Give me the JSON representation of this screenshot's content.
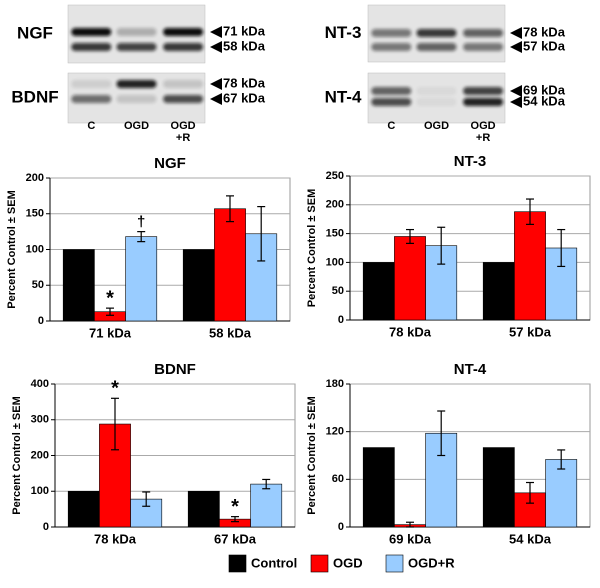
{
  "blots": {
    "lanes": [
      "C",
      "OGD",
      "OGD +R"
    ],
    "panels": [
      {
        "name": "NGF",
        "markers": [
          "71 kDa",
          "58 kDa"
        ]
      },
      {
        "name": "BDNF",
        "markers": [
          "78 kDa",
          "67 kDa"
        ]
      },
      {
        "name": "NT-3",
        "markers": [
          "78 kDa",
          "57 kDa"
        ]
      },
      {
        "name": "NT-4",
        "markers": [
          "69 kDa",
          "54 kDa"
        ]
      }
    ]
  },
  "chart_data": [
    {
      "type": "bar",
      "title": "NGF",
      "y_label": "Percent Control ± SEM",
      "categories": [
        "71 kDa",
        "58 kDa"
      ],
      "ylim": [
        0,
        200
      ],
      "yticks": [
        0,
        50,
        100,
        150,
        200
      ],
      "grid": true,
      "series": [
        {
          "name": "Control",
          "color": "#000000",
          "values": [
            100,
            100
          ]
        },
        {
          "name": "OGD",
          "color": "#ff0000",
          "values": [
            13,
            157
          ],
          "errors": [
            5,
            18
          ]
        },
        {
          "name": "OGD+R",
          "color": "#99ccff",
          "values": [
            118,
            122
          ],
          "errors": [
            7,
            38
          ]
        }
      ],
      "annotations": [
        {
          "text": "*",
          "category": 0,
          "series": 1
        },
        {
          "text": "†",
          "category": 0,
          "series": 2
        }
      ]
    },
    {
      "type": "bar",
      "title": "NT-3",
      "y_label": "Percent Control ± SEM",
      "categories": [
        "78 kDa",
        "57 kDa"
      ],
      "ylim": [
        0,
        250
      ],
      "yticks": [
        0,
        50,
        100,
        150,
        200,
        250
      ],
      "grid": true,
      "series": [
        {
          "name": "Control",
          "color": "#000000",
          "values": [
            100,
            100
          ]
        },
        {
          "name": "OGD",
          "color": "#ff0000",
          "values": [
            145,
            188
          ],
          "errors": [
            12,
            22
          ]
        },
        {
          "name": "OGD+R",
          "color": "#99ccff",
          "values": [
            129,
            125
          ],
          "errors": [
            32,
            32
          ]
        }
      ]
    },
    {
      "type": "bar",
      "title": "BDNF",
      "y_label": "Percent Control ± SEM",
      "categories": [
        "78 kDa",
        "67 kDa"
      ],
      "ylim": [
        0,
        400
      ],
      "yticks": [
        0,
        100,
        200,
        300,
        400
      ],
      "grid": true,
      "series": [
        {
          "name": "Control",
          "color": "#000000",
          "values": [
            100,
            100
          ]
        },
        {
          "name": "OGD",
          "color": "#ff0000",
          "values": [
            288,
            22
          ],
          "errors": [
            72,
            7
          ]
        },
        {
          "name": "OGD+R",
          "color": "#99ccff",
          "values": [
            78,
            120
          ],
          "errors": [
            20,
            13
          ]
        }
      ],
      "annotations": [
        {
          "text": "*",
          "category": 0,
          "series": 1
        },
        {
          "text": "*",
          "category": 1,
          "series": 1
        }
      ]
    },
    {
      "type": "bar",
      "title": "NT-4",
      "y_label": "Percent Control ± SEM",
      "categories": [
        "69 kDa",
        "54 kDa"
      ],
      "ylim": [
        0,
        180
      ],
      "yticks": [
        0,
        60,
        120,
        180
      ],
      "grid": true,
      "series": [
        {
          "name": "Control",
          "color": "#000000",
          "values": [
            100,
            100
          ]
        },
        {
          "name": "OGD",
          "color": "#ff0000",
          "values": [
            3,
            43
          ],
          "errors": [
            3,
            13
          ]
        },
        {
          "name": "OGD+R",
          "color": "#99ccff",
          "values": [
            118,
            85
          ],
          "errors": [
            28,
            12
          ]
        }
      ]
    }
  ]
}
